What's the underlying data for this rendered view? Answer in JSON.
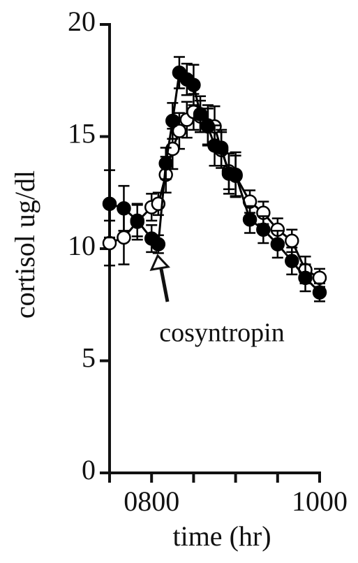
{
  "chart_data": {
    "type": "line",
    "xlabel": "time (hr)",
    "ylabel": "cortisol ug/dl",
    "annotation": "cosyntropin",
    "x": [
      7.5,
      7.67,
      7.83,
      8.0,
      8.08,
      8.17,
      8.25,
      8.33,
      8.42,
      8.5,
      8.58,
      8.67,
      8.75,
      8.83,
      8.92,
      9.0,
      9.17,
      9.33,
      9.5,
      9.67,
      9.83,
      10.0
    ],
    "series": [
      {
        "color": "#000000",
        "marker": "open",
        "values": [
          10.25,
          10.5,
          11.2,
          11.85,
          12.0,
          13.3,
          14.45,
          15.25,
          15.75,
          16.1,
          15.9,
          15.5,
          15.45,
          14.4,
          13.45,
          13.25,
          12.1,
          11.6,
          10.85,
          10.35,
          9.05,
          8.7
        ],
        "errors": [
          1.0,
          1.2,
          0.8,
          0.6,
          0.5,
          0.8,
          0.9,
          0.8,
          0.8,
          0.8,
          0.7,
          0.9,
          0.9,
          0.8,
          0.8,
          0.9,
          0.5,
          0.5,
          0.5,
          0.5,
          0.6,
          0.4
        ]
      },
      {
        "color": "#000000",
        "marker": "filled",
        "values": [
          12.0,
          11.8,
          11.25,
          10.45,
          10.2,
          13.8,
          15.7,
          17.85,
          17.55,
          17.3,
          16.0,
          15.45,
          14.6,
          14.5,
          13.35,
          13.3,
          11.3,
          10.85,
          10.2,
          9.45,
          8.7,
          8.05
        ],
        "errors": [
          1.5,
          1.0,
          0.7,
          0.6,
          0.4,
          0.7,
          0.8,
          0.7,
          0.7,
          0.9,
          0.8,
          0.8,
          0.9,
          0.8,
          0.9,
          1.0,
          0.6,
          0.6,
          0.6,
          0.6,
          0.6,
          0.4
        ]
      }
    ],
    "xlim": [
      7.5,
      10
    ],
    "xticks": [
      {
        "value": 7.5,
        "label": null
      },
      {
        "value": 8,
        "label": "0800"
      },
      {
        "value": 8.5,
        "label": null
      },
      {
        "value": 9,
        "label": null
      },
      {
        "value": 9.5,
        "label": null
      },
      {
        "value": 10,
        "label": "1000"
      }
    ],
    "ylim": [
      0,
      20
    ],
    "yticks": [
      0,
      5,
      10,
      15,
      20
    ],
    "grid": false
  }
}
